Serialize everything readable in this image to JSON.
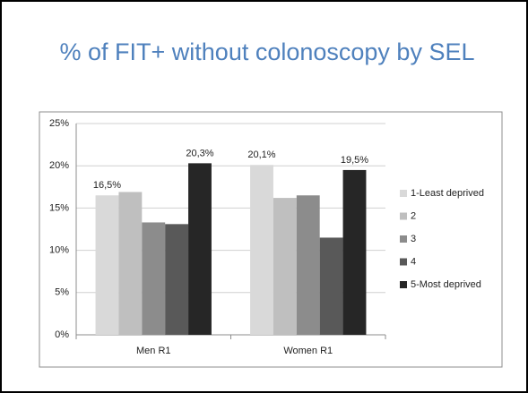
{
  "chart_data": {
    "type": "bar",
    "title": "% of FIT+ without colonoscopy by SEL",
    "categories": [
      "Men R1",
      "Women R1"
    ],
    "series": [
      {
        "name": "1-Least deprived",
        "color": "#d9d9d9",
        "values": [
          16.5,
          20.1
        ],
        "value_labels": [
          "16,5%",
          "20,1%"
        ]
      },
      {
        "name": "2",
        "color": "#bfbfbf",
        "values": [
          16.9,
          16.2
        ]
      },
      {
        "name": "3",
        "color": "#8c8c8c",
        "values": [
          13.3,
          16.5
        ]
      },
      {
        "name": "4",
        "color": "#595959",
        "values": [
          13.1,
          11.5
        ]
      },
      {
        "name": "5-Most deprived",
        "color": "#262626",
        "values": [
          20.3,
          19.5
        ],
        "value_labels": [
          "20,3%",
          "19,5%"
        ]
      }
    ],
    "ylim": [
      0,
      25
    ],
    "yticks": [
      {
        "value": 0,
        "label": "0%"
      },
      {
        "value": 5,
        "label": "5%"
      },
      {
        "value": 10,
        "label": "10%"
      },
      {
        "value": 15,
        "label": "15%"
      },
      {
        "value": 20,
        "label": "20%"
      },
      {
        "value": 25,
        "label": "25%"
      }
    ],
    "grid": true,
    "legend": "right"
  }
}
